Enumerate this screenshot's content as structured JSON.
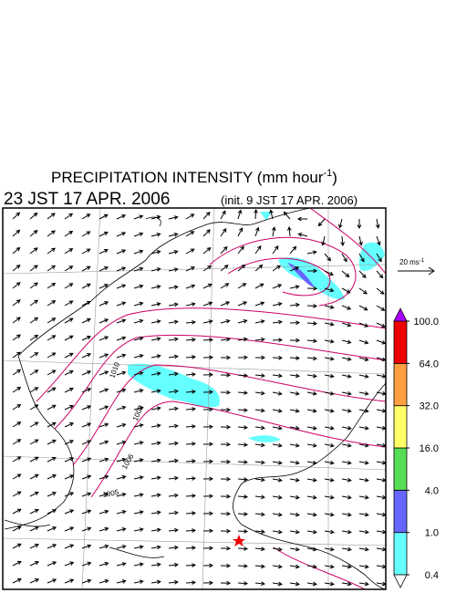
{
  "title": {
    "main": "PRECIPITATION INTENSITY (mm hour",
    "sup": "-1",
    "close": ")"
  },
  "valid_time": "23 JST 17 APR. 2006",
  "init_time": "(init. 9 JST 17 APR. 2006)",
  "reference_vector": {
    "label": "20 ms",
    "sup": "-1"
  },
  "contour_labels": [
    "1010",
    "1008",
    "1006",
    "1005"
  ],
  "colorbar": {
    "levels": [
      {
        "value": 0.4,
        "label": "0.4"
      },
      {
        "value": 1,
        "label": "1.0"
      },
      {
        "value": 4,
        "label": "4.0"
      },
      {
        "value": 16,
        "label": "16.0"
      },
      {
        "value": 32,
        "label": "32.0"
      },
      {
        "value": 64,
        "label": "64.0"
      },
      {
        "value": 100,
        "label": "100.0"
      }
    ],
    "colors": [
      "#66ffff",
      "#6666ff",
      "#55dd55",
      "#ffff66",
      "#ffa040",
      "#ee0000"
    ],
    "under_color": "#ffffff",
    "over_color": "#aa00ff"
  }
}
